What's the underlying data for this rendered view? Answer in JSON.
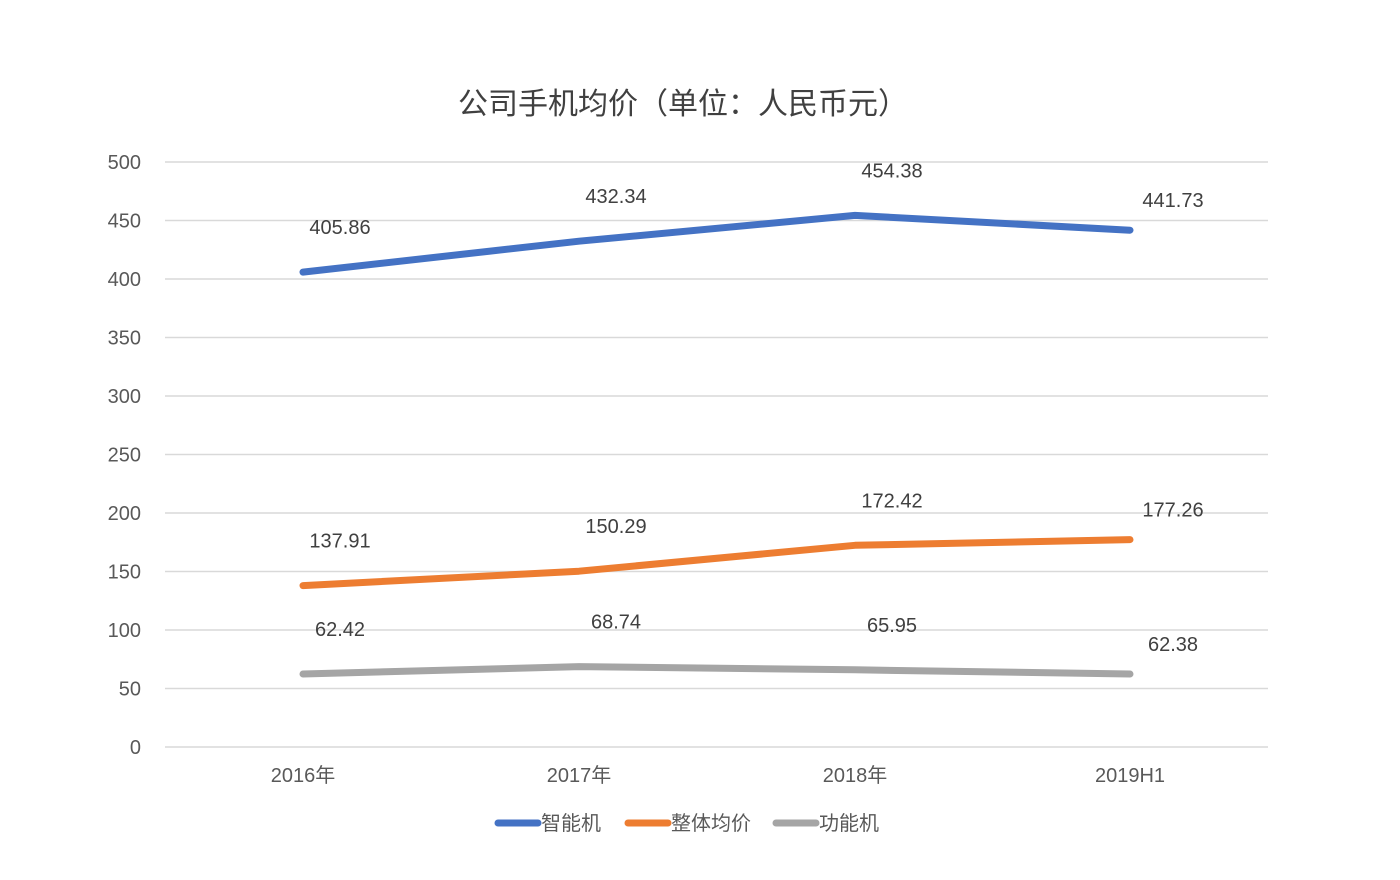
{
  "chart_data": {
    "type": "line",
    "title": "公司手机均价（单位：人民币元）",
    "categories": [
      "2016年",
      "2017年",
      "2018年",
      "2019H1"
    ],
    "ylim": [
      0,
      500
    ],
    "yticks": [
      0,
      50,
      100,
      150,
      200,
      250,
      300,
      350,
      400,
      450,
      500
    ],
    "grid": true,
    "legend_position": "bottom",
    "series": [
      {
        "name": "智能机",
        "color": "#4472C4",
        "values": [
          405.86,
          432.34,
          454.38,
          441.73
        ],
        "labels": [
          "405.86",
          "432.34",
          "454.38",
          "441.73"
        ]
      },
      {
        "name": "整体均价",
        "color": "#ED7D31",
        "values": [
          137.91,
          150.29,
          172.42,
          177.26
        ],
        "labels": [
          "137.91",
          "150.29",
          "172.42",
          "177.26"
        ]
      },
      {
        "name": "功能机",
        "color": "#A5A5A5",
        "values": [
          62.42,
          68.74,
          65.95,
          62.38
        ],
        "labels": [
          "62.42",
          "68.74",
          "65.95",
          "62.38"
        ]
      }
    ]
  }
}
